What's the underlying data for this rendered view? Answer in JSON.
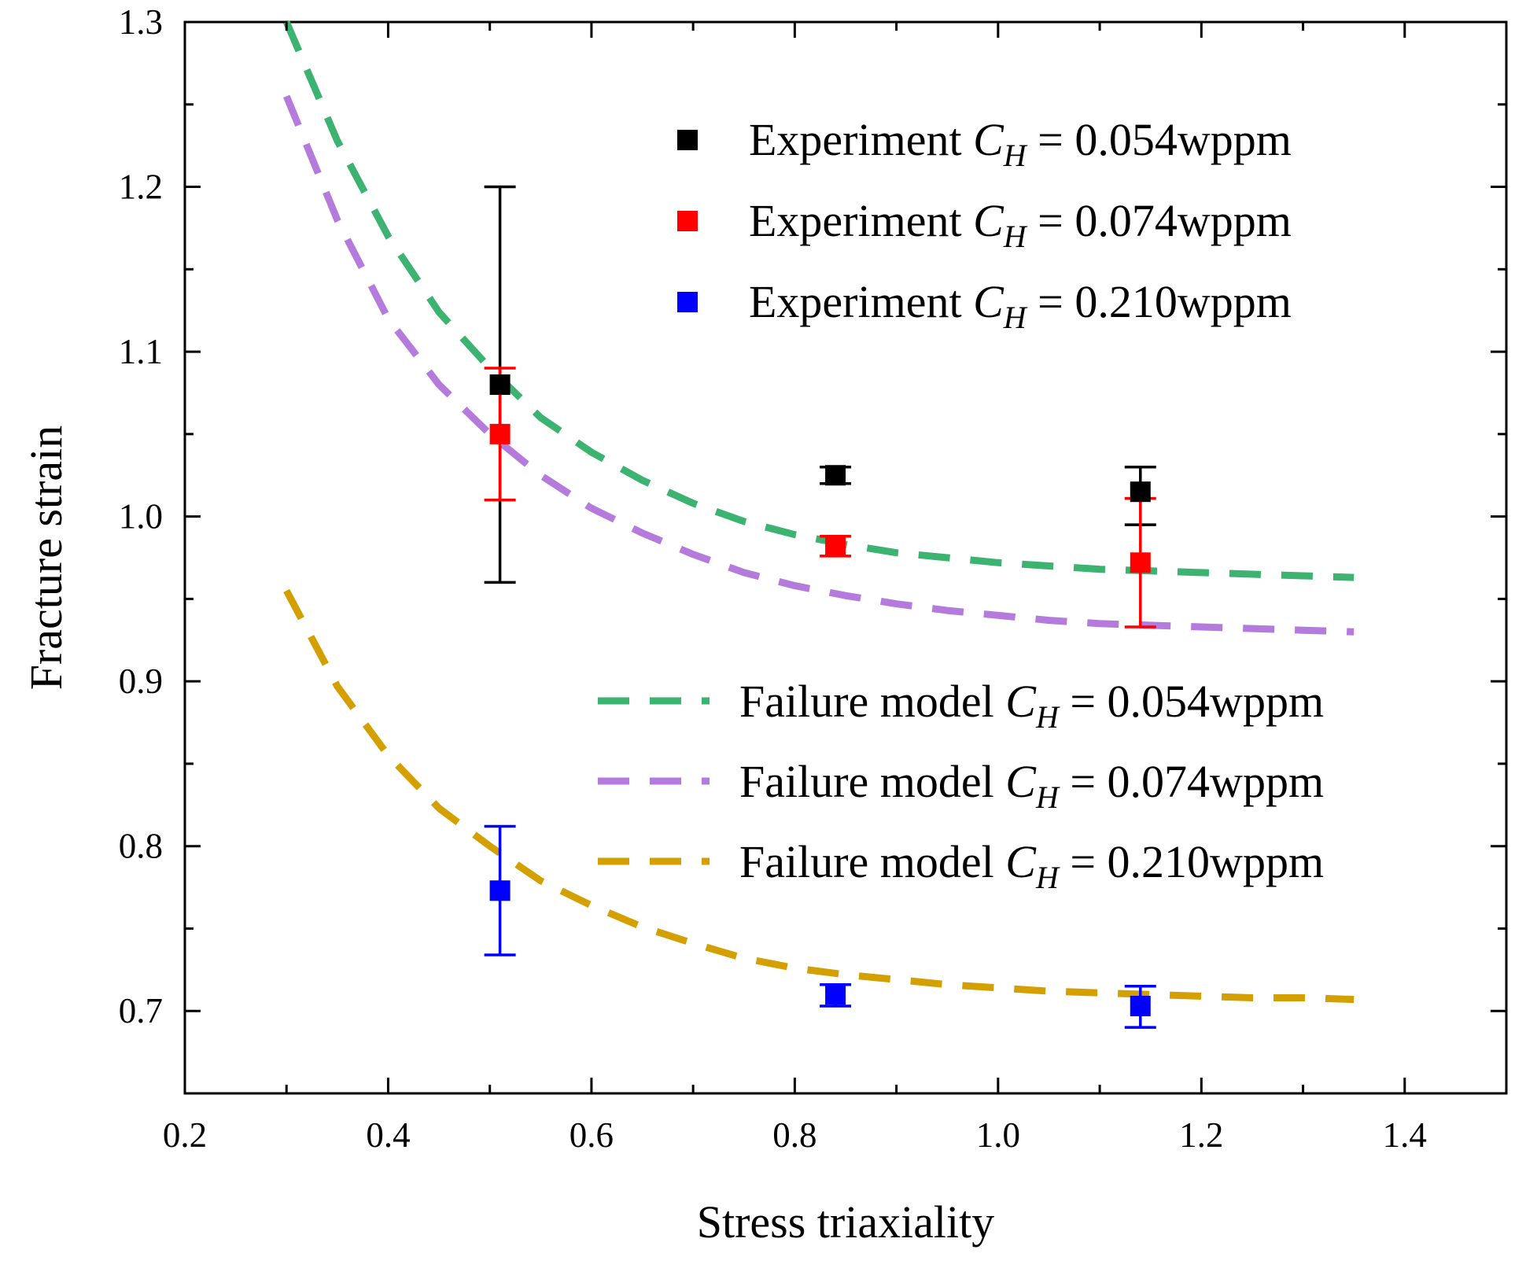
{
  "chart_data": {
    "type": "scatter",
    "xlabel": "Stress triaxiality",
    "ylabel": "Fracture strain",
    "xlim": [
      0.2,
      1.5
    ],
    "ylim": [
      0.65,
      1.3
    ],
    "x_major_ticks": [
      0.2,
      0.4,
      0.6,
      0.8,
      1.0,
      1.2,
      1.4
    ],
    "x_tick_labels": [
      "0.2",
      "0.4",
      "0.6",
      "0.8",
      "1.0",
      "1.2",
      "1.4"
    ],
    "y_major_ticks": [
      0.7,
      0.8,
      0.9,
      1.0,
      1.1,
      1.2,
      1.3
    ],
    "y_tick_labels": [
      "0.7",
      "0.8",
      "0.9",
      "1.0",
      "1.1",
      "1.2",
      "1.3"
    ],
    "grid": false,
    "experiment_series": [
      {
        "name": "Experiment CH = 0.054wppm",
        "legend_prefix": "Experiment ",
        "legend_value": " = 0.054wppm",
        "color": "#000000",
        "x": [
          0.51,
          0.84,
          1.14
        ],
        "y": [
          1.08,
          1.025,
          1.015
        ],
        "err_low": [
          0.96,
          1.02,
          0.995
        ],
        "err_high": [
          1.2,
          1.03,
          1.03
        ]
      },
      {
        "name": "Experiment CH = 0.074wppm",
        "legend_prefix": "Experiment ",
        "legend_value": " = 0.074wppm",
        "color": "#ff0000",
        "x": [
          0.51,
          0.84,
          1.14
        ],
        "y": [
          1.05,
          0.982,
          0.972
        ],
        "err_low": [
          1.01,
          0.976,
          0.933
        ],
        "err_high": [
          1.09,
          0.988,
          1.011
        ]
      },
      {
        "name": "Experiment CH = 0.210wppm",
        "legend_prefix": "Experiment ",
        "legend_value": " = 0.210wppm",
        "color": "#0000ff",
        "x": [
          0.51,
          0.84,
          1.14
        ],
        "y": [
          0.773,
          0.71,
          0.703
        ],
        "err_low": [
          0.734,
          0.703,
          0.69
        ],
        "err_high": [
          0.812,
          0.716,
          0.715
        ]
      }
    ],
    "model_series": [
      {
        "name": "Failure model CH = 0.054wppm",
        "legend_prefix": "Failure model ",
        "legend_value": " = 0.054wppm",
        "color": "#3cb371",
        "x": [
          0.3,
          0.35,
          0.4,
          0.45,
          0.5,
          0.55,
          0.6,
          0.65,
          0.7,
          0.75,
          0.8,
          0.85,
          0.9,
          0.95,
          1.0,
          1.05,
          1.1,
          1.15,
          1.2,
          1.25,
          1.3,
          1.35
        ],
        "y": [
          1.3,
          1.228,
          1.17,
          1.124,
          1.09,
          1.06,
          1.039,
          1.022,
          1.008,
          0.997,
          0.989,
          0.983,
          0.978,
          0.975,
          0.972,
          0.97,
          0.968,
          0.967,
          0.966,
          0.965,
          0.964,
          0.963
        ]
      },
      {
        "name": "Failure model CH = 0.074wppm",
        "legend_prefix": "Failure model ",
        "legend_value": " = 0.074wppm",
        "color": "#b57bdc",
        "x": [
          0.3,
          0.35,
          0.4,
          0.45,
          0.5,
          0.55,
          0.6,
          0.65,
          0.7,
          0.75,
          0.8,
          0.85,
          0.9,
          0.95,
          1.0,
          1.05,
          1.1,
          1.15,
          1.2,
          1.25,
          1.3,
          1.35
        ],
        "y": [
          1.255,
          1.18,
          1.12,
          1.08,
          1.05,
          1.025,
          1.005,
          0.99,
          0.977,
          0.966,
          0.958,
          0.952,
          0.947,
          0.943,
          0.94,
          0.937,
          0.935,
          0.934,
          0.933,
          0.932,
          0.931,
          0.93
        ]
      },
      {
        "name": "Failure model CH = 0.210wppm",
        "legend_prefix": "Failure model ",
        "legend_value": " = 0.210wppm",
        "color": "#d4a000",
        "x": [
          0.3,
          0.35,
          0.4,
          0.45,
          0.5,
          0.55,
          0.6,
          0.65,
          0.7,
          0.75,
          0.8,
          0.85,
          0.9,
          0.95,
          1.0,
          1.05,
          1.1,
          1.15,
          1.2,
          1.25,
          1.3,
          1.35
        ],
        "y": [
          0.955,
          0.897,
          0.855,
          0.823,
          0.8,
          0.779,
          0.764,
          0.751,
          0.741,
          0.732,
          0.726,
          0.722,
          0.719,
          0.716,
          0.714,
          0.712,
          0.711,
          0.71,
          0.709,
          0.708,
          0.708,
          0.707
        ]
      }
    ],
    "legend_symbol_main": "C",
    "legend_symbol_sub": "H"
  }
}
